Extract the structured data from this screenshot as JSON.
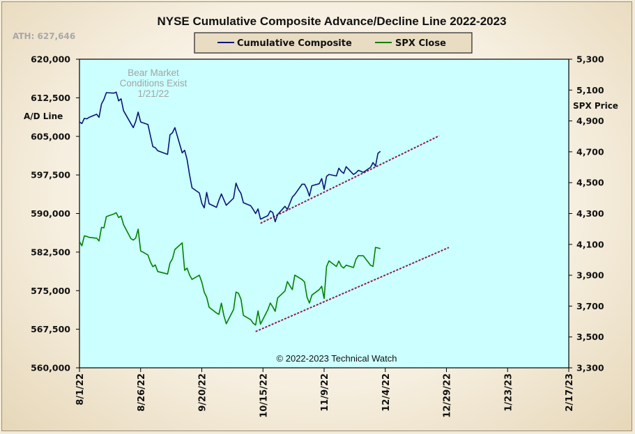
{
  "chart_data": {
    "type": "line",
    "title": "NYSE Cumulative  Composite  Advance/Decline  Line  2022-2023",
    "ath_label": "ATH: 627,646",
    "left_axis_label": "A/D Line",
    "right_axis_label": "SPX Price",
    "annotation_lines": [
      "Bear Market",
      "Conditions Exist",
      "1/21/22"
    ],
    "copyright": "© 2022-2023  Technical Watch",
    "y_left": {
      "ylim": [
        560000,
        620000
      ],
      "ticks": [
        560000,
        567500,
        575000,
        582500,
        590000,
        597500,
        605000,
        612500,
        620000
      ],
      "tick_labels": [
        "560,000",
        "567,500",
        "575,000",
        "582,500",
        "590,000",
        "597,500",
        "605,000",
        "612,500",
        "620,000"
      ]
    },
    "y_right": {
      "ylim": [
        3300,
        5300
      ],
      "ticks": [
        3300,
        3500,
        3700,
        3900,
        4100,
        4300,
        4500,
        4700,
        4900,
        5100,
        5300
      ],
      "tick_labels": [
        "3,300",
        "3,500",
        "3,700",
        "3,900",
        "4,100",
        "4,300",
        "4,500",
        "4,700",
        "4,900",
        "5,100",
        "5,300"
      ]
    },
    "x_axis": {
      "start": "8/1/22",
      "end": "2/17/23",
      "ticks": [
        "8/1/22",
        "8/26/22",
        "9/20/22",
        "10/15/22",
        "11/9/22",
        "12/4/22",
        "12/29/22",
        "1/23/23",
        "2/17/23"
      ]
    },
    "grid": false,
    "legend_position": "top-center",
    "colors": {
      "plot_background": "#ccffff",
      "ad_line": "#0a1478",
      "spx_line": "#008000",
      "trendline": "#8b1a4a"
    },
    "series": [
      {
        "name": "Cumulative Composite",
        "axis": "left",
        "x": [
          "8/1/22",
          "8/2/22",
          "8/3/22",
          "8/4/22",
          "8/5/22",
          "8/8/22",
          "8/9/22",
          "8/10/22",
          "8/11/22",
          "8/12/22",
          "8/15/22",
          "8/16/22",
          "8/17/22",
          "8/18/22",
          "8/19/22",
          "8/22/22",
          "8/23/22",
          "8/24/22",
          "8/25/22",
          "8/26/22",
          "8/29/22",
          "8/30/22",
          "8/31/22",
          "9/1/22",
          "9/2/22",
          "9/6/22",
          "9/7/22",
          "9/8/22",
          "9/9/22",
          "9/12/22",
          "9/13/22",
          "9/14/22",
          "9/15/22",
          "9/16/22",
          "9/19/22",
          "9/20/22",
          "9/21/22",
          "9/22/22",
          "9/23/22",
          "9/26/22",
          "9/27/22",
          "9/28/22",
          "9/29/22",
          "9/30/22",
          "10/3/22",
          "10/4/22",
          "10/5/22",
          "10/6/22",
          "10/7/22",
          "10/10/22",
          "10/11/22",
          "10/12/22",
          "10/13/22",
          "10/14/22",
          "10/17/22",
          "10/18/22",
          "10/19/22",
          "10/20/22",
          "10/21/22",
          "10/24/22",
          "10/25/22",
          "10/26/22",
          "10/27/22",
          "10/28/22",
          "10/31/22",
          "11/1/22",
          "11/2/22",
          "11/3/22",
          "11/4/22",
          "11/7/22",
          "11/8/22",
          "11/9/22",
          "11/10/22",
          "11/11/22",
          "11/14/22",
          "11/15/22",
          "11/16/22",
          "11/17/22",
          "11/18/22",
          "11/21/22",
          "11/22/22",
          "11/23/22",
          "11/25/22",
          "11/28/22",
          "11/29/22",
          "11/30/22",
          "12/1/22",
          "12/2/22"
        ],
        "values": [
          607800,
          607500,
          608500,
          608400,
          608700,
          609300,
          608700,
          611300,
          612200,
          613500,
          613400,
          613600,
          611900,
          612300,
          610000,
          607500,
          606700,
          607900,
          609700,
          607800,
          607300,
          605100,
          603000,
          602800,
          602200,
          601500,
          605300,
          605700,
          606700,
          601800,
          602300,
          600500,
          597500,
          595000,
          594000,
          592000,
          591100,
          594100,
          591900,
          591200,
          592600,
          593800,
          592700,
          591600,
          593000,
          595900,
          594700,
          593900,
          592100,
          591500,
          590800,
          590000,
          590900,
          588900,
          589600,
          590500,
          590200,
          588400,
          589800,
          591400,
          590800,
          592000,
          593200,
          593700,
          595700,
          595700,
          594800,
          593400,
          595400,
          595800,
          596800,
          594700,
          597200,
          597600,
          597300,
          598800,
          598200,
          597800,
          599100,
          597600,
          597900,
          598400,
          598000,
          599000,
          599900,
          599200,
          601700,
          602100
        ]
      },
      {
        "name": "SPX Close",
        "axis": "right",
        "x": [
          "8/1/22",
          "8/2/22",
          "8/3/22",
          "8/4/22",
          "8/5/22",
          "8/8/22",
          "8/9/22",
          "8/10/22",
          "8/11/22",
          "8/12/22",
          "8/15/22",
          "8/16/22",
          "8/17/22",
          "8/18/22",
          "8/19/22",
          "8/22/22",
          "8/23/22",
          "8/24/22",
          "8/25/22",
          "8/26/22",
          "8/29/22",
          "8/30/22",
          "8/31/22",
          "9/1/22",
          "9/2/22",
          "9/6/22",
          "9/7/22",
          "9/8/22",
          "9/9/22",
          "9/12/22",
          "9/13/22",
          "9/14/22",
          "9/15/22",
          "9/16/22",
          "9/19/22",
          "9/20/22",
          "9/21/22",
          "9/22/22",
          "9/23/22",
          "9/26/22",
          "9/27/22",
          "9/28/22",
          "9/29/22",
          "9/30/22",
          "10/3/22",
          "10/4/22",
          "10/5/22",
          "10/6/22",
          "10/7/22",
          "10/10/22",
          "10/11/22",
          "10/12/22",
          "10/13/22",
          "10/14/22",
          "10/17/22",
          "10/18/22",
          "10/19/22",
          "10/20/22",
          "10/21/22",
          "10/24/22",
          "10/25/22",
          "10/26/22",
          "10/27/22",
          "10/28/22",
          "10/31/22",
          "11/1/22",
          "11/2/22",
          "11/3/22",
          "11/4/22",
          "11/7/22",
          "11/8/22",
          "11/9/22",
          "11/10/22",
          "11/11/22",
          "11/14/22",
          "11/15/22",
          "11/16/22",
          "11/17/22",
          "11/18/22",
          "11/21/22",
          "11/22/22",
          "11/23/22",
          "11/25/22",
          "11/28/22",
          "11/29/22",
          "11/30/22",
          "12/1/22",
          "12/2/22"
        ],
        "values": [
          4118,
          4091,
          4155,
          4152,
          4145,
          4140,
          4122,
          4210,
          4207,
          4280,
          4297,
          4305,
          4274,
          4284,
          4228,
          4138,
          4128,
          4141,
          4199,
          4058,
          4031,
          3986,
          3955,
          3967,
          3924,
          3908,
          3980,
          4006,
          4067,
          4110,
          3932,
          3946,
          3901,
          3873,
          3900,
          3856,
          3790,
          3758,
          3693,
          3655,
          3647,
          3719,
          3640,
          3586,
          3678,
          3791,
          3783,
          3745,
          3640,
          3612,
          3589,
          3577,
          3669,
          3583,
          3677,
          3720,
          3695,
          3666,
          3753,
          3798,
          3859,
          3831,
          3807,
          3901,
          3872,
          3856,
          3759,
          3720,
          3771,
          3807,
          3828,
          3749,
          3956,
          3993,
          3957,
          3992,
          3959,
          3947,
          3965,
          3950,
          4003,
          4027,
          4026,
          3964,
          3958,
          4080,
          4077,
          4072
        ]
      }
    ],
    "trendlines": [
      {
        "axis": "left",
        "x": [
          "10/14/22",
          "12/26/22"
        ],
        "values": [
          588100,
          605100
        ]
      },
      {
        "axis": "right",
        "x": [
          "10/12/22",
          "12/30/22"
        ],
        "values": [
          3535,
          4080
        ]
      }
    ]
  }
}
